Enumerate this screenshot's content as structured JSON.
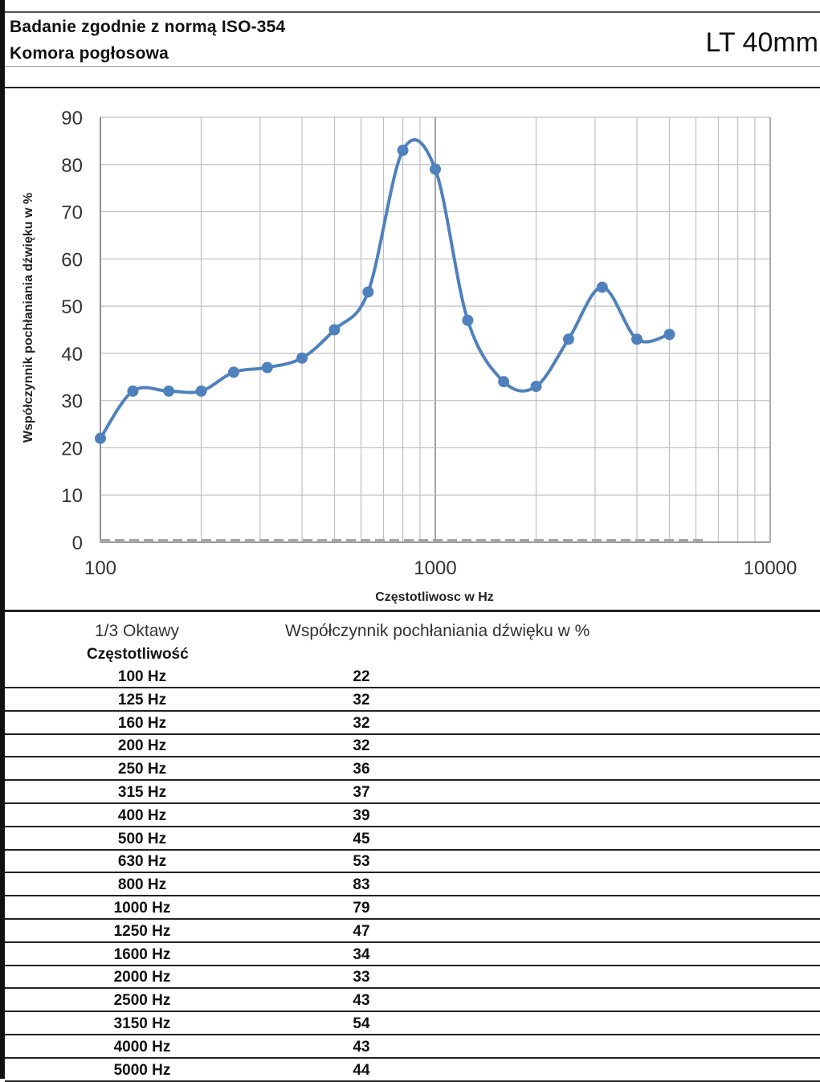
{
  "header": {
    "title": "Badanie zgodnie z normą ISO-354",
    "subtitle": "Komora pogłosowa",
    "product": "LT 40mm"
  },
  "colors": {
    "series": "#4f81bd",
    "grid": "#bfbfbf",
    "text": "#111111"
  },
  "chart_data": {
    "type": "line",
    "title": "",
    "xlabel": "Częstotliwosc w Hz",
    "ylabel": "Współczynnik pochłaniania dźwięku w %",
    "xscale": "log",
    "xlim": [
      100,
      10000
    ],
    "ylim": [
      0,
      90
    ],
    "x_ticks": [
      "100",
      "1000",
      "10000"
    ],
    "y_ticks": [
      "0",
      "10",
      "20",
      "30",
      "40",
      "50",
      "60",
      "70",
      "80",
      "90"
    ],
    "grid": true,
    "legend": "none",
    "series": [
      {
        "x": [
          100,
          125,
          160,
          200,
          250,
          315,
          400,
          500,
          630,
          800,
          1000,
          1250,
          1600,
          2000,
          2500,
          3150,
          4000,
          5000
        ],
        "values": [
          22,
          32,
          32,
          32,
          36,
          37,
          39,
          45,
          53,
          83,
          79,
          47,
          34,
          33,
          43,
          54,
          43,
          44
        ]
      }
    ]
  },
  "table": {
    "header_band": "1/3 Oktawy",
    "header_value": "Współczynnik pochłaniania dźwięku w %",
    "header_freq": "Częstotliwość",
    "rows": [
      {
        "freq": "100 Hz",
        "value": "22"
      },
      {
        "freq": "125 Hz",
        "value": "32"
      },
      {
        "freq": "160 Hz",
        "value": "32"
      },
      {
        "freq": "200 Hz",
        "value": "32"
      },
      {
        "freq": "250 Hz",
        "value": "36"
      },
      {
        "freq": "315 Hz",
        "value": "37"
      },
      {
        "freq": "400 Hz",
        "value": "39"
      },
      {
        "freq": "500 Hz",
        "value": "45"
      },
      {
        "freq": "630 Hz",
        "value": "53"
      },
      {
        "freq": "800 Hz",
        "value": "83"
      },
      {
        "freq": "1000 Hz",
        "value": "79"
      },
      {
        "freq": "1250 Hz",
        "value": "47"
      },
      {
        "freq": "1600 Hz",
        "value": "34"
      },
      {
        "freq": "2000 Hz",
        "value": "33"
      },
      {
        "freq": "2500 Hz",
        "value": "43"
      },
      {
        "freq": "3150 Hz",
        "value": "54"
      },
      {
        "freq": "4000 Hz",
        "value": "43"
      },
      {
        "freq": "5000 Hz",
        "value": "44"
      }
    ]
  }
}
